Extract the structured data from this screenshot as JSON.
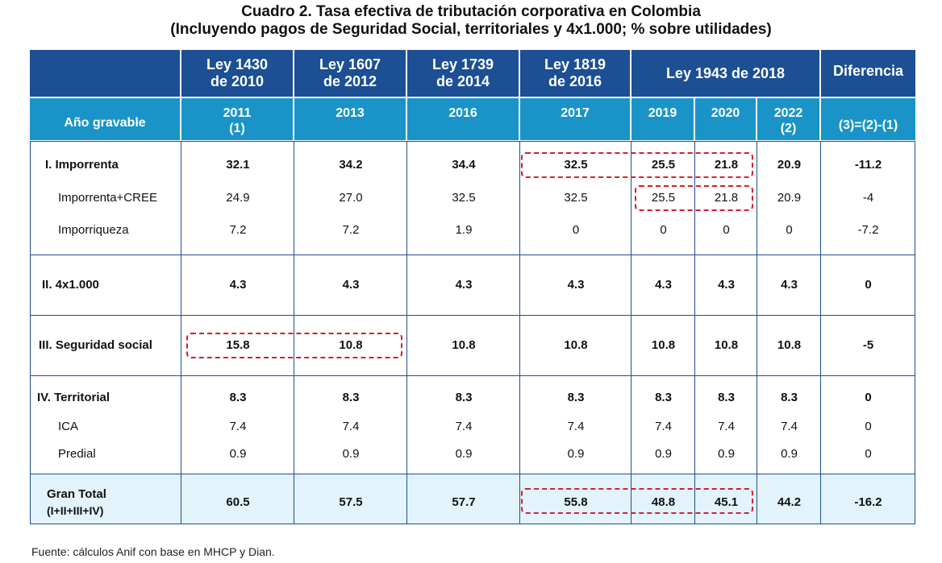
{
  "title_line1": "Cuadro 2. Tasa efectiva de tributación corporativa en Colombia",
  "title_line2": "(Incluyendo pagos de Seguridad Social, territoriales y 4x1.000; % sobre utilidades)",
  "header": {
    "laws": [
      {
        "line1": "Ley 1430",
        "line2": "de 2010"
      },
      {
        "line1": "Ley 1607",
        "line2": "de 2012"
      },
      {
        "line1": "Ley 1739",
        "line2": "de 2014"
      },
      {
        "line1": "Ley 1819",
        "line2": "de 2016"
      }
    ],
    "ley1943": "Ley 1943 de 2018",
    "diferencia": "Diferencia",
    "ano_gravable": "Año gravable",
    "years": [
      {
        "line1": "2011",
        "line2": "(1)"
      },
      {
        "line1": "2013",
        "line2": ""
      },
      {
        "line1": "2016",
        "line2": ""
      },
      {
        "line1": "2017",
        "line2": ""
      },
      {
        "line1": "2019",
        "line2": ""
      },
      {
        "line1": "2020",
        "line2": ""
      },
      {
        "line1": "2022",
        "line2": "(2)"
      }
    ],
    "diff_formula": "(3)=(2)-(1)"
  },
  "rows": [
    {
      "label": "I. Imporrenta",
      "values": [
        "32.1",
        "34.2",
        "34.4",
        "32.5",
        "25.5",
        "21.8",
        "20.9",
        "-11.2"
      ],
      "bold": true
    },
    {
      "label": "Imporrenta+CREE",
      "values": [
        "24.9",
        "27.0",
        "32.5",
        "32.5",
        "25.5",
        "21.8",
        "20.9",
        "-4"
      ],
      "bold": false
    },
    {
      "label": "Imporriqueza",
      "values": [
        "7.2",
        "7.2",
        "1.9",
        "0",
        "0",
        "0",
        "0",
        "-7.2"
      ],
      "bold": false
    },
    {
      "label": "II. 4x1.000",
      "values": [
        "4.3",
        "4.3",
        "4.3",
        "4.3",
        "4.3",
        "4.3",
        "4.3",
        "0"
      ],
      "bold": true
    },
    {
      "label": "III. Seguridad social",
      "values": [
        "15.8",
        "10.8",
        "10.8",
        "10.8",
        "10.8",
        "10.8",
        "10.8",
        "-5"
      ],
      "bold": true
    },
    {
      "label": "IV. Territorial",
      "values": [
        "8.3",
        "8.3",
        "8.3",
        "8.3",
        "8.3",
        "8.3",
        "8.3",
        "0"
      ],
      "bold": true
    },
    {
      "label": "ICA",
      "values": [
        "7.4",
        "7.4",
        "7.4",
        "7.4",
        "7.4",
        "7.4",
        "7.4",
        "0"
      ],
      "bold": false
    },
    {
      "label": "Predial",
      "values": [
        "0.9",
        "0.9",
        "0.9",
        "0.9",
        "0.9",
        "0.9",
        "0.9",
        "0"
      ],
      "bold": false
    }
  ],
  "total": {
    "label1": "Gran Total",
    "label2": "(I+II+III+IV)",
    "values": [
      "60.5",
      "57.5",
      "57.7",
      "55.8",
      "48.8",
      "45.1",
      "44.2",
      "-16.2"
    ]
  },
  "source": "Fuente: cálculos Anif con base en MHCP y Dian.",
  "colors": {
    "header_dark": "#1c4f93",
    "header_light": "#1a94c8",
    "total_bg": "#e2f3fc",
    "highlight": "#d4202a"
  }
}
